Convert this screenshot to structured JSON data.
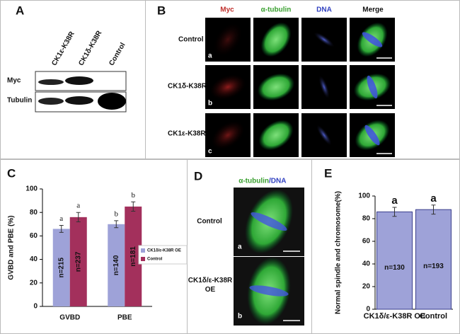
{
  "panels": {
    "A": {
      "label": "A",
      "lanes": [
        "CK1ε-K38R",
        "CK1δ-K38R",
        "Control"
      ],
      "rows": [
        "Myc",
        "Tubulin"
      ]
    },
    "B": {
      "label": "B",
      "columns": [
        "Myc",
        "α-tubulin",
        "DNA",
        "Merge"
      ],
      "rows": [
        "Control",
        "CK1δ-K38R",
        "CK1ε-K38R"
      ],
      "sublabels": [
        "a",
        "b",
        "c"
      ]
    },
    "C": {
      "label": "C"
    },
    "D": {
      "label": "D",
      "title_parts": [
        "α-tubulin",
        "/DNA"
      ],
      "rows": [
        "Control",
        "CK1δ/ε-K38R OE"
      ],
      "sublabels": [
        "a",
        "b"
      ]
    },
    "E": {
      "label": "E"
    }
  },
  "chart_data": [
    {
      "type": "bar",
      "y_label": "GVBD and PBE (%)",
      "categories": [
        "GVBD",
        "PBE"
      ],
      "series": [
        {
          "name": "CK1δ/ε-K38R OE",
          "color": "#9ea2d8",
          "values": [
            66,
            70
          ],
          "errors": [
            3,
            3
          ],
          "sig_labels": [
            "a",
            "b"
          ],
          "n_labels": [
            "n=215",
            "n=140"
          ]
        },
        {
          "name": "Control",
          "color": "#a3305c",
          "values": [
            76,
            85
          ],
          "errors": [
            4,
            4
          ],
          "sig_labels": [
            "a",
            "b"
          ],
          "n_labels": [
            "n=237",
            "n=181"
          ]
        }
      ],
      "ylim": [
        0,
        100
      ],
      "yticks": [
        0,
        20,
        40,
        60,
        80,
        100
      ],
      "legend": "right"
    },
    {
      "type": "bar",
      "y_label": "Normal spindle and chromosome(%)",
      "categories": [
        "CK1δ/ε-K38R OE",
        "Control"
      ],
      "series": [
        {
          "color": "#9ea2d8",
          "values": [
            86,
            88
          ],
          "errors": [
            4,
            4
          ],
          "sig_labels": [
            "a",
            "a"
          ],
          "n_labels": [
            "n=130",
            "n=193"
          ]
        }
      ],
      "ylim": [
        0,
        100
      ],
      "yticks": [
        0,
        20,
        40,
        60,
        80,
        100
      ]
    }
  ]
}
